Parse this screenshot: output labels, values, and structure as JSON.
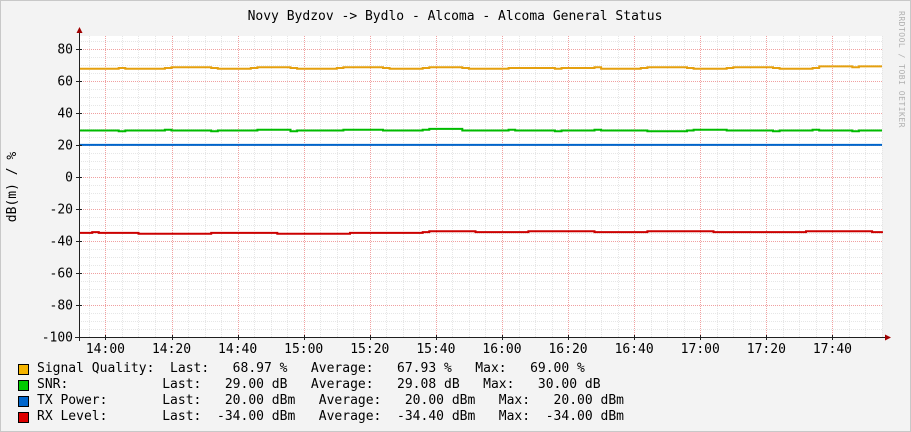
{
  "chart_data": {
    "type": "line",
    "title": "Novy Bydzov -> Bydlo - Alcoma - Alcoma General Status",
    "ylabel": "dB(m) / %",
    "xlabel": "",
    "watermark": "RRDTOOL / TOBI OETIKER",
    "ylim": [
      -100,
      88
    ],
    "y_ticks": [
      "80",
      "60",
      "40",
      "20",
      "0",
      "-20",
      "-40",
      "-60",
      "-80",
      "-100"
    ],
    "y_tick_values": [
      80,
      60,
      40,
      20,
      0,
      -20,
      -40,
      -60,
      -80,
      -100
    ],
    "x_range": [
      "13:52",
      "17:55"
    ],
    "x_ticks": [
      "14:00",
      "14:20",
      "14:40",
      "15:00",
      "15:20",
      "15:40",
      "16:00",
      "16:20",
      "16:40",
      "17:00",
      "17:20",
      "17:40"
    ],
    "grid": true,
    "legend_position": "bottom-left",
    "series": [
      {
        "name": "Signal Quality",
        "color": "#e5a00f",
        "x": [
          "13:52",
          "14:04",
          "14:06",
          "14:18",
          "14:20",
          "14:32",
          "14:34",
          "14:44",
          "14:46",
          "14:56",
          "14:58",
          "15:10",
          "15:12",
          "15:24",
          "15:26",
          "15:36",
          "15:38",
          "15:48",
          "15:50",
          "16:02",
          "16:04",
          "16:16",
          "16:18",
          "16:28",
          "16:30",
          "16:42",
          "16:44",
          "16:56",
          "16:58",
          "17:08",
          "17:10",
          "17:22",
          "17:24",
          "17:34",
          "17:36",
          "17:46",
          "17:48",
          "17:55"
        ],
        "values": [
          67.5,
          68,
          67.5,
          68,
          68.5,
          68,
          67.5,
          68,
          68.5,
          68,
          67.5,
          68,
          68.5,
          68,
          67.5,
          68,
          68.5,
          68,
          67.5,
          68,
          68,
          67.5,
          68,
          68.5,
          67.5,
          68,
          68.5,
          68,
          67.5,
          68,
          68.5,
          68,
          67.5,
          68,
          69,
          68.5,
          69,
          69
        ]
      },
      {
        "name": "SNR",
        "color": "#00bb00",
        "x": [
          "13:52",
          "14:04",
          "14:06",
          "14:18",
          "14:20",
          "14:32",
          "14:34",
          "14:44",
          "14:46",
          "14:56",
          "14:58",
          "15:10",
          "15:12",
          "15:24",
          "15:26",
          "15:36",
          "15:38",
          "15:48",
          "15:50",
          "16:02",
          "16:04",
          "16:16",
          "16:18",
          "16:28",
          "16:30",
          "16:42",
          "16:44",
          "16:56",
          "16:58",
          "17:08",
          "17:10",
          "17:22",
          "17:24",
          "17:34",
          "17:36",
          "17:46",
          "17:48",
          "17:55"
        ],
        "values": [
          29,
          28.5,
          29,
          29.5,
          29,
          28.5,
          29,
          29,
          29.5,
          28.5,
          29,
          29,
          29.5,
          29,
          29,
          29.5,
          30,
          29,
          29,
          29.5,
          29,
          28.5,
          29,
          29.5,
          29,
          29,
          28.5,
          29,
          29.5,
          29,
          29,
          28.5,
          29,
          29.5,
          29,
          28.5,
          29,
          29
        ]
      },
      {
        "name": "TX Power",
        "color": "#0066cc",
        "x": [
          "13:52",
          "17:55"
        ],
        "values": [
          20,
          20
        ]
      },
      {
        "name": "RX Level",
        "color": "#cc0000",
        "x": [
          "13:52",
          "13:56",
          "13:58",
          "14:08",
          "14:10",
          "14:30",
          "14:32",
          "14:50",
          "14:52",
          "15:12",
          "15:14",
          "15:36",
          "15:38",
          "15:50",
          "15:52",
          "16:06",
          "16:08",
          "16:26",
          "16:28",
          "16:42",
          "16:44",
          "17:02",
          "17:04",
          "17:30",
          "17:32",
          "17:50",
          "17:52",
          "17:55"
        ],
        "values": [
          -35,
          -34.5,
          -35,
          -35,
          -35.5,
          -35.5,
          -35,
          -35,
          -35.5,
          -35.5,
          -35,
          -34.5,
          -34,
          -34,
          -34.5,
          -34.5,
          -34,
          -34,
          -34.5,
          -34.5,
          -34,
          -34,
          -34.5,
          -34.5,
          -34,
          -34,
          -34.5,
          -34
        ]
      }
    ]
  },
  "legend": [
    {
      "color": "#f4b400",
      "text": "Signal Quality:  Last:   68.97 %   Average:   67.93 %   Max:   69.00 %"
    },
    {
      "color": "#00cc00",
      "text": "SNR:            Last:   29.00 dB   Average:   29.08 dB   Max:   30.00 dB"
    },
    {
      "color": "#0066cc",
      "text": "TX Power:       Last:   20.00 dBm   Average:   20.00 dBm   Max:   20.00 dBm"
    },
    {
      "color": "#dd0000",
      "text": "RX Level:       Last:  -34.00 dBm   Average:  -34.40 dBm   Max:  -34.00 dBm"
    }
  ]
}
